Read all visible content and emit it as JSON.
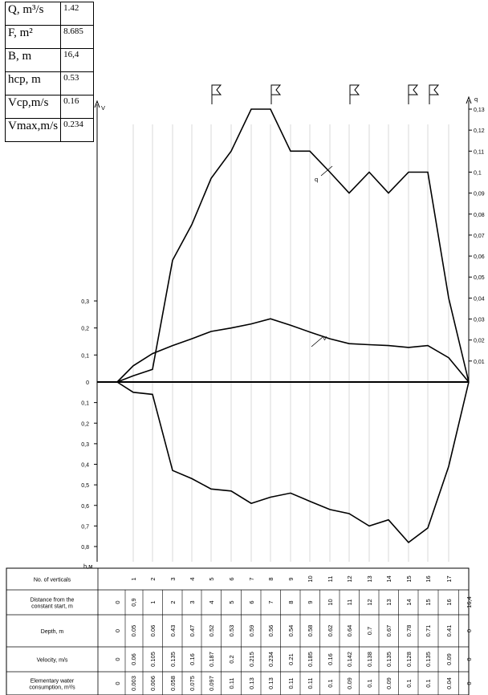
{
  "parameters": [
    {
      "label": "Q, m³/s",
      "value": "1.42"
    },
    {
      "label": "F, m²",
      "value": "8.685"
    },
    {
      "label": "B, m",
      "value": "16,4"
    },
    {
      "label": "hcp, m",
      "value": "0.53"
    },
    {
      "label": "Vcp,m/s",
      "value": "0.16"
    },
    {
      "label": "Vmax,m/s",
      "value": "0.234"
    }
  ],
  "table": {
    "row_labels": [
      "No. of verticals",
      "Distance from the constant start, m",
      "Depth, m",
      "Velocity, m/s",
      "Elementary water consumption, m³/s"
    ]
  },
  "chart_data": {
    "type": "line",
    "distance": [
      0,
      0.9,
      1,
      2,
      3,
      4,
      5,
      6,
      7,
      8,
      9,
      10,
      11,
      12,
      13,
      14,
      15,
      16,
      16.4
    ],
    "distance_labels": [
      "0",
      "0,9",
      "1",
      "2",
      "3",
      "4",
      "5",
      "6",
      "7",
      "8",
      "9",
      "10",
      "11",
      "12",
      "13",
      "14",
      "15",
      "16",
      "16,4"
    ],
    "verticals": [
      "",
      "1",
      "2",
      "3",
      "4",
      "5",
      "6",
      "7",
      "8",
      "9",
      "10",
      "11",
      "12",
      "13",
      "14",
      "15",
      "16",
      "17",
      ""
    ],
    "depth": [
      0,
      0.05,
      0.06,
      0.43,
      0.47,
      0.52,
      0.53,
      0.59,
      0.56,
      0.54,
      0.58,
      0.62,
      0.64,
      0.7,
      0.67,
      0.78,
      0.71,
      0.41,
      0
    ],
    "depth_labels": [
      "0",
      "0.05",
      "0.06",
      "0.43",
      "0.47",
      "0.52",
      "0.53",
      "0.59",
      "0.56",
      "0.54",
      "0.58",
      "0.62",
      "0.64",
      "0.7",
      "0.67",
      "0.78",
      "0.71",
      "0.41",
      "0"
    ],
    "velocity": [
      0,
      0.06,
      0.105,
      0.135,
      0.16,
      0.187,
      0.2,
      0.215,
      0.234,
      0.21,
      0.185,
      0.16,
      0.142,
      0.138,
      0.135,
      0.128,
      0.135,
      0.09,
      0
    ],
    "velocity_labels": [
      "0",
      "0.06",
      "0.105",
      "0.135",
      "0.16",
      "0.187",
      "0.2",
      "0.215",
      "0.234",
      "0.21",
      "0.185",
      "0.16",
      "0.142",
      "0.138",
      "0.135",
      "0.128",
      "0.135",
      "0.09",
      "0"
    ],
    "discharge": [
      0,
      0.003,
      0.006,
      0.058,
      0.075,
      0.097,
      0.11,
      0.13,
      0.13,
      0.11,
      0.11,
      0.1,
      0.09,
      0.1,
      0.09,
      0.1,
      0.1,
      0.04,
      0
    ],
    "discharge_labels": [
      "0",
      "0.003",
      "0.006",
      "0.058",
      "0.075",
      "0.097",
      "0.11",
      "0.13",
      "0.13",
      "0.11",
      "0.11",
      "0.1",
      "0.09",
      "0.1",
      "0.09",
      "0.1",
      "0.1",
      "0.04",
      "0"
    ],
    "left_axis_label_top": "V",
    "left_axis_label_bottom": "h,м",
    "right_axis_label": "q",
    "left_ticks_up": [
      "0,3",
      "0,2",
      "0,1"
    ],
    "zero_label": "0",
    "left_ticks_down": [
      "0,1",
      "0,2",
      "0,3",
      "0,4",
      "0,5",
      "0,6",
      "0,7",
      "0,8"
    ],
    "right_ticks": [
      "0,13",
      "0,12",
      "0,11",
      "0,1",
      "0,09",
      "0,08",
      "0,07",
      "0,06",
      "0,05",
      "0,04",
      "0,03",
      "0,02",
      "0,01"
    ],
    "curve_label_q": "q",
    "curve_label_v": "V",
    "flag_verticals": [
      6,
      9,
      13,
      16,
      17
    ],
    "ylim_velocity": [
      0,
      0.3
    ],
    "ylim_depth": [
      0,
      0.8
    ],
    "ylim_discharge": [
      0,
      0.13
    ]
  }
}
